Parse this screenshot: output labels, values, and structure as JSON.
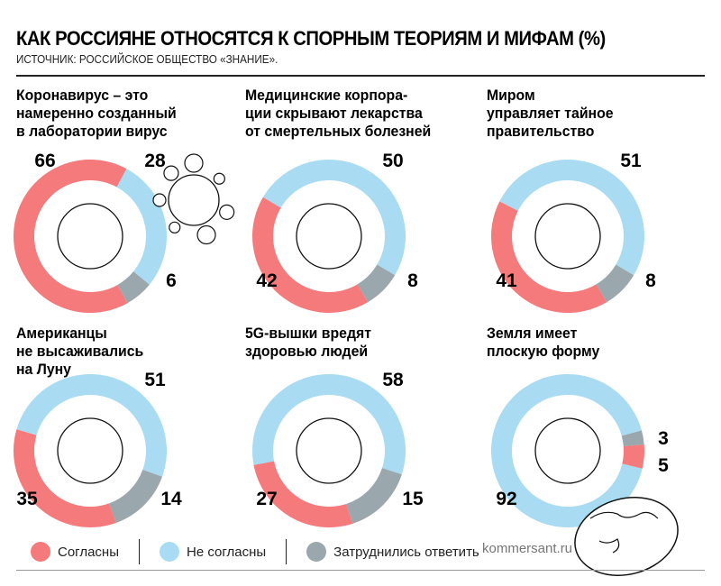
{
  "header": {
    "title": "КАК РОССИЯНЕ ОТНОСЯТСЯ К СПОРНЫМ ТЕОРИЯМ И МИФАМ (%)",
    "source": "ИСТОЧНИК: РОССИЙСКОЕ ОБЩЕСТВО «ЗНАНИЕ»."
  },
  "colors": {
    "agree": "#f47a7c",
    "disagree": "#a9dcf2",
    "unsure": "#9aa7ad"
  },
  "chart_data": [
    {
      "type": "pie",
      "title": "Коронавирус – это\nнамеренно созданный\nв лаборатории вирус",
      "agree": 66,
      "disagree": 28,
      "unsure": 6
    },
    {
      "type": "pie",
      "title": "Медицинские корпора-\nции скрывают лекарства\nот смертельных болезней",
      "agree": 42,
      "disagree": 50,
      "unsure": 8
    },
    {
      "type": "pie",
      "title": "Миром\nуправляет тайное\nправительство",
      "agree": 41,
      "disagree": 51,
      "unsure": 8
    },
    {
      "type": "pie",
      "title": "Американцы\nне высаживались\nна Луну",
      "agree": 35,
      "disagree": 51,
      "unsure": 14
    },
    {
      "type": "pie",
      "title": "5G-вышки вредят\nздоровью людей",
      "agree": 27,
      "disagree": 58,
      "unsure": 15
    },
    {
      "type": "pie",
      "title": "Земля имеет\nплоскую форму",
      "agree": 5,
      "disagree": 92,
      "unsure": 3
    }
  ],
  "legend": {
    "agree": "Согласны",
    "disagree": "Не согласны",
    "unsure": "Затруднились ответить",
    "placement": "bottom"
  },
  "footer": {
    "site": "kommersant.ru"
  }
}
